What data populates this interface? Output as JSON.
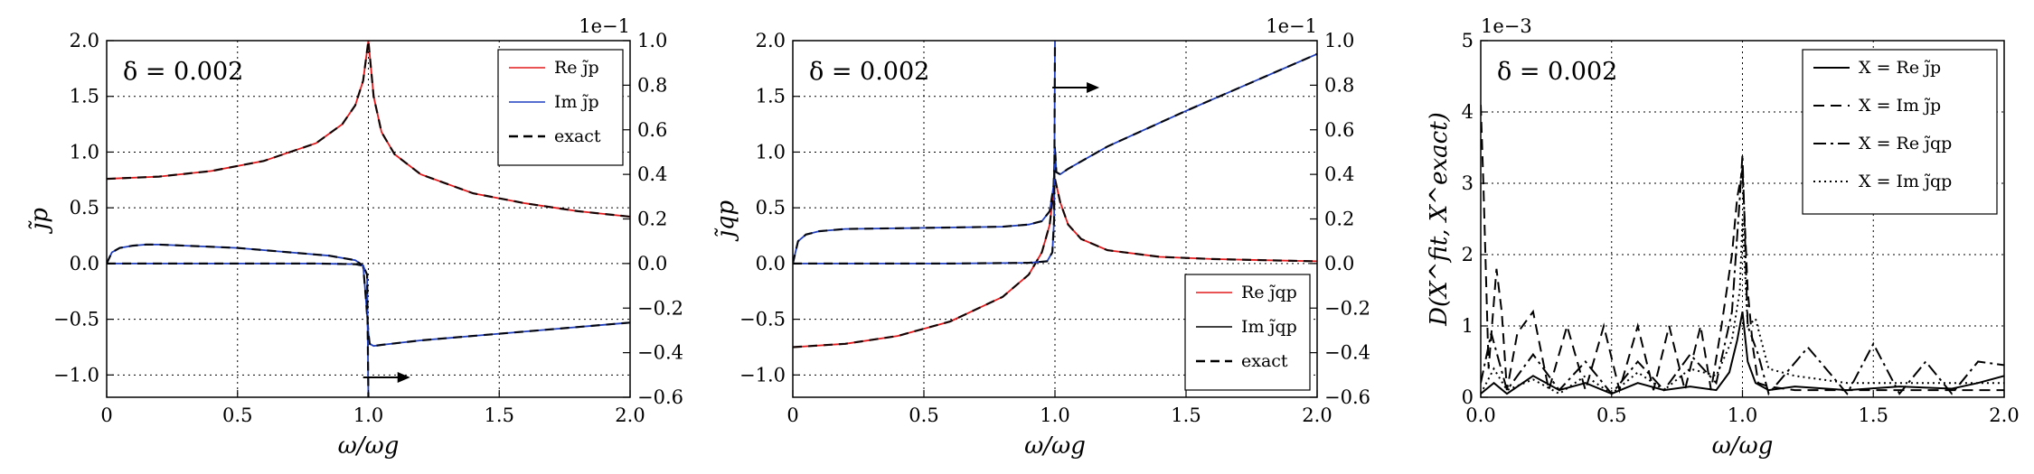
{
  "chart_data": [
    {
      "type": "line",
      "panel": "left",
      "annotation": "δ = 0.002",
      "xlabel": "ω/ωg",
      "ylabel": "j̃p",
      "xlim": [
        0,
        2
      ],
      "xticks": [
        "0",
        "0.5",
        "1.0",
        "1.5",
        "2.0"
      ],
      "ylim_left": [
        -1.2,
        2.0
      ],
      "yticks_left": [
        "−1.0",
        "−0.5",
        "0.0",
        "0.5",
        "1.0",
        "1.5",
        "2.0"
      ],
      "ylim_right": [
        -0.6,
        1.0
      ],
      "yticks_right": [
        "−0.6",
        "−0.4",
        "−0.2",
        "0.0",
        "0.2",
        "0.4",
        "0.6",
        "0.8",
        "1.0"
      ],
      "right_axis_multiplier": "1e−1",
      "grid": true,
      "legend_position": "top-right",
      "legend": [
        "Re j̃p",
        "Im j̃p",
        "exact"
      ],
      "arrow": "points right (Im curve read on right axis)",
      "series": [
        {
          "name": "Re j̃p",
          "axis": "left",
          "color": "#e41a1c",
          "style": "solid",
          "x": [
            0,
            0.2,
            0.4,
            0.6,
            0.8,
            0.9,
            0.95,
            0.98,
            1.0,
            1.02,
            1.05,
            1.1,
            1.2,
            1.4,
            1.6,
            1.8,
            2.0
          ],
          "y": [
            0.76,
            0.78,
            0.83,
            0.92,
            1.08,
            1.25,
            1.42,
            1.64,
            2.0,
            1.5,
            1.18,
            0.98,
            0.8,
            0.63,
            0.54,
            0.47,
            0.42
          ]
        },
        {
          "name": "Im j̃p",
          "axis": "left",
          "color": "#1f3fbf",
          "style": "solid",
          "x": [
            0,
            0.02,
            0.05,
            0.1,
            0.15,
            0.2,
            0.3,
            0.5,
            0.7,
            0.85,
            0.95,
            0.98,
            0.99,
            1.0,
            1.005,
            1.02,
            1.05,
            1.2,
            1.5,
            2.0
          ],
          "y": [
            0.0,
            0.1,
            0.14,
            0.16,
            0.17,
            0.17,
            0.16,
            0.14,
            0.1,
            0.07,
            0.03,
            -0.02,
            -0.3,
            -0.62,
            -0.72,
            -0.74,
            -0.73,
            -0.69,
            -0.63,
            -0.53
          ]
        },
        {
          "name": "Im j̃p (right axis)",
          "axis": "right",
          "color": "#1f3fbf",
          "style": "solid",
          "x": [
            0,
            0.2,
            0.5,
            0.8,
            0.95,
            0.98,
            0.995,
            1.0
          ],
          "y": [
            0.0,
            0.0,
            0.0,
            0.0,
            -0.003,
            -0.01,
            -0.05,
            -0.6
          ]
        }
      ]
    },
    {
      "type": "line",
      "panel": "middle",
      "annotation": "δ = 0.002",
      "xlabel": "ω/ωg",
      "ylabel": "j̃qp",
      "xlim": [
        0,
        2
      ],
      "xticks": [
        "0",
        "0.5",
        "1.0",
        "1.5",
        "2.0"
      ],
      "ylim_left": [
        -1.2,
        2.0
      ],
      "yticks_left": [
        "−1.0",
        "−0.5",
        "0.0",
        "0.5",
        "1.0",
        "1.5",
        "2.0"
      ],
      "ylim_right": [
        -0.6,
        1.0
      ],
      "yticks_right": [
        "−0.6",
        "−0.4",
        "−0.2",
        "0.0",
        "0.2",
        "0.4",
        "0.6",
        "0.8",
        "1.0"
      ],
      "right_axis_multiplier": "1e−1",
      "grid": true,
      "legend_position": "lower-right",
      "legend": [
        "Re j̃qp",
        "Im j̃qp",
        "exact"
      ],
      "arrow": "points right (Im curve read on right axis)",
      "series": [
        {
          "name": "Re j̃qp",
          "axis": "left",
          "color": "#e41a1c",
          "style": "solid",
          "x": [
            0,
            0.2,
            0.4,
            0.6,
            0.8,
            0.9,
            0.95,
            0.98,
            1.0,
            1.02,
            1.05,
            1.1,
            1.2,
            1.4,
            1.6,
            1.8,
            2.0
          ],
          "y": [
            -0.75,
            -0.72,
            -0.65,
            -0.52,
            -0.3,
            -0.1,
            0.1,
            0.35,
            0.76,
            0.55,
            0.35,
            0.22,
            0.12,
            0.06,
            0.04,
            0.03,
            0.02
          ]
        },
        {
          "name": "Im j̃qp",
          "axis": "left",
          "color": "#1f3fbf",
          "style": "solid",
          "x": [
            0,
            0.02,
            0.05,
            0.1,
            0.2,
            0.5,
            0.8,
            0.9,
            0.95,
            0.98,
            0.995,
            1.0,
            1.005,
            1.02,
            1.05,
            1.2,
            1.5,
            2.0
          ],
          "y": [
            0.0,
            0.2,
            0.26,
            0.29,
            0.31,
            0.32,
            0.33,
            0.35,
            0.38,
            0.47,
            0.7,
            1.05,
            0.82,
            0.8,
            0.85,
            1.05,
            1.37,
            1.88
          ]
        },
        {
          "name": "Im j̃qp (right axis)",
          "axis": "right",
          "color": "#1f3fbf",
          "style": "solid",
          "x": [
            0,
            0.3,
            0.6,
            0.9,
            0.97,
            0.99,
            0.997,
            1.0
          ],
          "y": [
            0.0,
            0.0,
            0.0,
            0.003,
            0.01,
            0.05,
            0.2,
            1.0
          ]
        }
      ]
    },
    {
      "type": "line",
      "panel": "right",
      "annotation": "δ = 0.002",
      "xlabel": "ω/ωg",
      "ylabel": "D(X^fit, X^exact)",
      "xlim": [
        0,
        2
      ],
      "xticks": [
        "0.0",
        "0.5",
        "1.0",
        "1.5",
        "2.0"
      ],
      "ylim": [
        0,
        5
      ],
      "yticks": [
        "0",
        "1",
        "2",
        "3",
        "4",
        "5"
      ],
      "y_multiplier": "1e−3",
      "grid": true,
      "legend_position": "top-right",
      "legend": [
        "X = Re j̃p",
        "X = Im j̃p",
        "X = Re j̃qp",
        "X = Im j̃qp"
      ],
      "series": [
        {
          "name": "X = Re j̃p",
          "color": "#000000",
          "style": "solid",
          "x": [
            0,
            0.05,
            0.1,
            0.2,
            0.3,
            0.4,
            0.5,
            0.6,
            0.7,
            0.8,
            0.9,
            0.95,
            0.98,
            1.0,
            1.02,
            1.05,
            1.1,
            1.2,
            1.4,
            1.6,
            1.8,
            1.9,
            2.0
          ],
          "y": [
            0.05,
            0.2,
            0.05,
            0.3,
            0.1,
            0.2,
            0.05,
            0.2,
            0.1,
            0.15,
            0.1,
            0.35,
            0.8,
            1.2,
            0.5,
            0.2,
            0.1,
            0.15,
            0.1,
            0.15,
            0.12,
            0.2,
            0.3
          ]
        },
        {
          "name": "X = Im j̃p",
          "color": "#000000",
          "style": "dashed",
          "x": [
            0,
            0.01,
            0.03,
            0.06,
            0.08,
            0.1,
            0.14,
            0.2,
            0.26,
            0.33,
            0.4,
            0.47,
            0.53,
            0.6,
            0.66,
            0.72,
            0.78,
            0.84,
            0.88,
            0.92,
            0.96,
            0.98,
            1.0,
            1.02,
            1.04,
            1.06,
            1.1,
            1.2,
            1.4,
            1.6,
            1.8,
            2.0
          ],
          "y": [
            4.1,
            3.0,
            0.4,
            1.8,
            1.2,
            0.1,
            0.9,
            1.2,
            0.1,
            1.0,
            0.1,
            1.0,
            0.1,
            1.0,
            0.1,
            1.0,
            0.1,
            1.0,
            0.1,
            1.0,
            2.0,
            2.8,
            3.2,
            1.5,
            0.7,
            0.2,
            0.15,
            0.1,
            0.1,
            0.1,
            0.1,
            0.1
          ]
        },
        {
          "name": "X = Re j̃qp",
          "color": "#000000",
          "style": "dashdot",
          "x": [
            0,
            0.04,
            0.1,
            0.2,
            0.3,
            0.4,
            0.5,
            0.6,
            0.7,
            0.8,
            0.9,
            0.96,
            0.99,
            1.0,
            1.02,
            1.06,
            1.1,
            1.25,
            1.4,
            1.5,
            1.6,
            1.7,
            1.8,
            1.9,
            2.0
          ],
          "y": [
            0.2,
            0.9,
            0.1,
            0.6,
            0.1,
            0.5,
            0.05,
            0.5,
            0.1,
            0.6,
            0.2,
            1.2,
            2.8,
            3.4,
            1.0,
            0.6,
            0.05,
            0.7,
            0.05,
            0.75,
            0.05,
            0.5,
            0.05,
            0.5,
            0.45
          ]
        },
        {
          "name": "X = Im j̃qp",
          "color": "#000000",
          "style": "dotted",
          "x": [
            0,
            0.05,
            0.1,
            0.2,
            0.3,
            0.4,
            0.5,
            0.6,
            0.7,
            0.8,
            0.9,
            0.96,
            0.99,
            1.0,
            1.02,
            1.05,
            1.1,
            1.2,
            1.4,
            1.6,
            1.8,
            2.0
          ],
          "y": [
            0.05,
            0.4,
            0.1,
            0.25,
            0.05,
            0.3,
            0.05,
            0.35,
            0.1,
            0.4,
            0.3,
            0.8,
            1.5,
            2.5,
            1.0,
            1.1,
            0.4,
            0.3,
            0.2,
            0.2,
            0.2,
            0.2
          ]
        }
      ]
    }
  ]
}
